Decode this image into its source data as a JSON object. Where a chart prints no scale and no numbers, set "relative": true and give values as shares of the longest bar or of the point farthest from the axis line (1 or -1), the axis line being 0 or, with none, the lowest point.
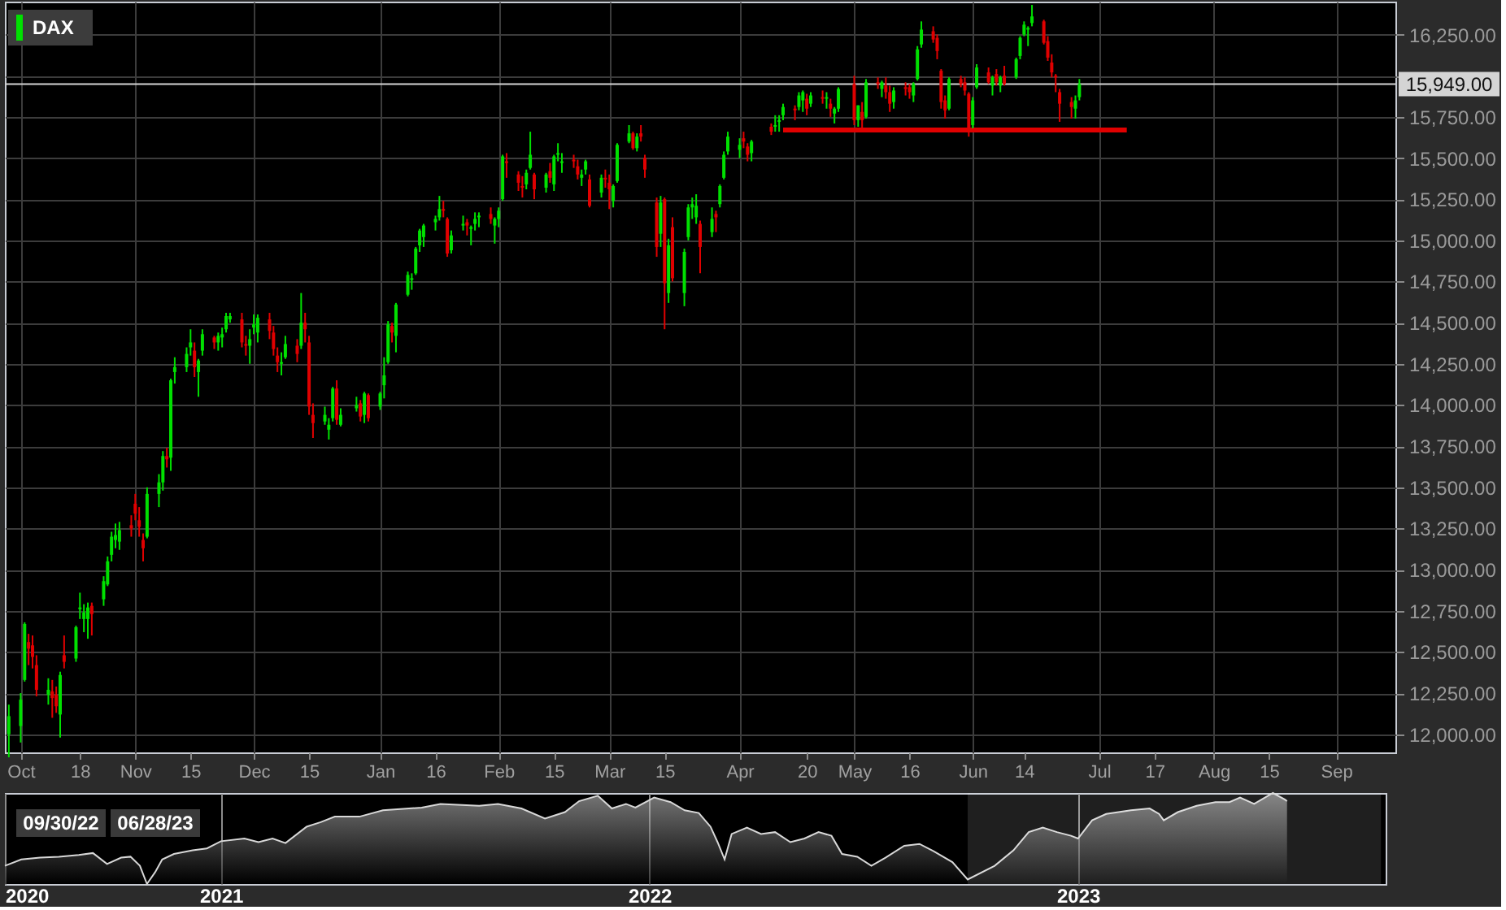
{
  "chart_data": [
    {
      "type": "candlestick",
      "x": [
        "2022-09-30",
        "2022-10-03",
        "2022-10-04",
        "2022-10-05",
        "2022-10-06",
        "2022-10-07",
        "2022-10-10",
        "2022-10-11",
        "2022-10-12",
        "2022-10-13",
        "2022-10-14",
        "2022-10-17",
        "2022-10-18",
        "2022-10-19",
        "2022-10-20",
        "2022-10-21",
        "2022-10-24",
        "2022-10-25",
        "2022-10-26",
        "2022-10-27",
        "2022-10-28",
        "2022-10-31",
        "2022-11-01",
        "2022-11-02",
        "2022-11-03",
        "2022-11-04",
        "2022-11-07",
        "2022-11-08",
        "2022-11-09",
        "2022-11-10",
        "2022-11-11",
        "2022-11-14",
        "2022-11-15",
        "2022-11-16",
        "2022-11-17",
        "2022-11-18",
        "2022-11-21",
        "2022-11-22",
        "2022-11-23",
        "2022-11-24",
        "2022-11-25",
        "2022-11-28",
        "2022-11-29",
        "2022-11-30",
        "2022-12-01",
        "2022-12-02",
        "2022-12-05",
        "2022-12-06",
        "2022-12-07",
        "2022-12-08",
        "2022-12-09",
        "2022-12-12",
        "2022-12-13",
        "2022-12-14",
        "2022-12-15",
        "2022-12-16",
        "2022-12-19",
        "2022-12-20",
        "2022-12-21",
        "2022-12-22",
        "2022-12-23",
        "2022-12-27",
        "2022-12-28",
        "2022-12-29",
        "2022-12-30",
        "2023-01-02",
        "2023-01-03",
        "2023-01-04",
        "2023-01-05",
        "2023-01-06",
        "2023-01-09",
        "2023-01-10",
        "2023-01-11",
        "2023-01-12",
        "2023-01-13",
        "2023-01-16",
        "2023-01-17",
        "2023-01-18",
        "2023-01-19",
        "2023-01-20",
        "2023-01-23",
        "2023-01-24",
        "2023-01-25",
        "2023-01-26",
        "2023-01-27",
        "2023-01-30",
        "2023-01-31",
        "2023-02-01",
        "2023-02-02",
        "2023-02-03",
        "2023-02-06",
        "2023-02-07",
        "2023-02-08",
        "2023-02-09",
        "2023-02-10",
        "2023-02-13",
        "2023-02-14",
        "2023-02-15",
        "2023-02-16",
        "2023-02-17",
        "2023-02-20",
        "2023-02-21",
        "2023-02-22",
        "2023-02-23",
        "2023-02-24",
        "2023-02-27",
        "2023-02-28",
        "2023-03-01",
        "2023-03-02",
        "2023-03-03",
        "2023-03-06",
        "2023-03-07",
        "2023-03-08",
        "2023-03-09",
        "2023-03-10",
        "2023-03-13",
        "2023-03-14",
        "2023-03-15",
        "2023-03-16",
        "2023-03-17",
        "2023-03-20",
        "2023-03-21",
        "2023-03-22",
        "2023-03-23",
        "2023-03-24",
        "2023-03-27",
        "2023-03-28",
        "2023-03-29",
        "2023-03-30",
        "2023-03-31",
        "2023-04-03",
        "2023-04-04",
        "2023-04-05",
        "2023-04-06",
        "2023-04-11",
        "2023-04-12",
        "2023-04-13",
        "2023-04-14",
        "2023-04-17",
        "2023-04-18",
        "2023-04-19",
        "2023-04-20",
        "2023-04-21",
        "2023-04-24",
        "2023-04-25",
        "2023-04-26",
        "2023-04-27",
        "2023-04-28",
        "2023-05-02",
        "2023-05-03",
        "2023-05-04",
        "2023-05-05",
        "2023-05-08",
        "2023-05-09",
        "2023-05-10",
        "2023-05-11",
        "2023-05-12",
        "2023-05-15",
        "2023-05-16",
        "2023-05-17",
        "2023-05-18",
        "2023-05-19",
        "2023-05-22",
        "2023-05-23",
        "2023-05-24",
        "2023-05-25",
        "2023-05-26",
        "2023-05-29",
        "2023-05-30",
        "2023-05-31",
        "2023-06-01",
        "2023-06-02",
        "2023-06-05",
        "2023-06-06",
        "2023-06-07",
        "2023-06-08",
        "2023-06-09",
        "2023-06-12",
        "2023-06-13",
        "2023-06-14",
        "2023-06-15",
        "2023-06-16",
        "2023-06-19",
        "2023-06-20",
        "2023-06-21",
        "2023-06-22",
        "2023-06-23",
        "2023-06-26",
        "2023-06-27",
        "2023-06-28"
      ],
      "series": [
        {
          "name": "DAX",
          "color": "#00e000",
          "colors": [
            "#00e000",
            "#00e000",
            "#00e000",
            "#e00000",
            "#e00000",
            "#e00000",
            "#00e000",
            "#e00000",
            "#e00000",
            "#00e000",
            "#e00000",
            "#00e000",
            "#00e000",
            "#00e000",
            "#00e000",
            "#e00000",
            "#00e000",
            "#00e000",
            "#00e000",
            "#00e000",
            "#00e000",
            "#e00000",
            "#e00000",
            "#e00000",
            "#e00000",
            "#00e000",
            "#00e000",
            "#00e000",
            "#e00000",
            "#00e000",
            "#00e000",
            "#00e000",
            "#00e000",
            "#e00000",
            "#00e000",
            "#00e000",
            "#e00000",
            "#00e000",
            "#00e000",
            "#00e000",
            "#00e000",
            "#e00000",
            "#e00000",
            "#00e000",
            "#00e000",
            "#00e000",
            "#e00000",
            "#e00000",
            "#e00000",
            "#00e000",
            "#00e000",
            "#e00000",
            "#00e000",
            "#e00000",
            "#e00000",
            "#e00000",
            "#00e000",
            "#00e000",
            "#00e000",
            "#e00000",
            "#00e000",
            "#00e000",
            "#e00000",
            "#00e000",
            "#e00000",
            "#00e000",
            "#00e000",
            "#00e000",
            "#e00000",
            "#00e000",
            "#00e000",
            "#00e000",
            "#00e000",
            "#00e000",
            "#00e000",
            "#00e000",
            "#00e000",
            "#e00000",
            "#e00000",
            "#00e000",
            "#00e000",
            "#e00000",
            "#00e000",
            "#00e000",
            "#00e000",
            "#e00000",
            "#00e000",
            "#00e000",
            "#00e000",
            "#e00000",
            "#e00000",
            "#e00000",
            "#00e000",
            "#00e000",
            "#e00000",
            "#00e000",
            "#e00000",
            "#00e000",
            "#00e000",
            "#00e000",
            "#e00000",
            "#e00000",
            "#00e000",
            "#00e000",
            "#e00000",
            "#00e000",
            "#e00000",
            "#e00000",
            "#00e000",
            "#00e000",
            "#00e000",
            "#e00000",
            "#00e000",
            "#e00000",
            "#e00000",
            "#e00000",
            "#00e000",
            "#e00000",
            "#00e000",
            "#e00000",
            "#00e000",
            "#00e000",
            "#00e000",
            "#00e000",
            "#e00000",
            "#00e000",
            "#e00000",
            "#00e000",
            "#00e000",
            "#00e000",
            "#00e000",
            "#e00000",
            "#e00000",
            "#00e000",
            "#e00000",
            "#00e000",
            "#00e000",
            "#00e000",
            "#e00000",
            "#00e000",
            "#00e000",
            "#e00000",
            "#00e000",
            "#e00000",
            "#00e000",
            "#e00000",
            "#00e000",
            "#00e000",
            "#e00000",
            "#00e000",
            "#e00000",
            "#00e000",
            "#e00000",
            "#00e000",
            "#e00000",
            "#e00000",
            "#00e000",
            "#e00000",
            "#e00000",
            "#00e000",
            "#00e000",
            "#00e000",
            "#e00000",
            "#e00000",
            "#e00000",
            "#e00000",
            "#00e000",
            "#e00000",
            "#e00000",
            "#e00000",
            "#00e000",
            "#00e000",
            "#e00000",
            "#00e000",
            "#e00000",
            "#00e000",
            "#e00000",
            "#00e000",
            "#00e000",
            "#00e000",
            "#00e000",
            "#00e000",
            "#e00000",
            "#e00000",
            "#e00000",
            "#e00000",
            "#e00000",
            "#e00000",
            "#00e000",
            "#00e000"
          ],
          "ohlc": [
            [
              12000,
              12180,
              11860,
              12110
            ],
            [
              12050,
              12250,
              11950,
              12210
            ],
            [
              12330,
              12680,
              12320,
              12670
            ],
            [
              12560,
              12610,
              12420,
              12520
            ],
            [
              12540,
              12600,
              12400,
              12470
            ],
            [
              12420,
              12480,
              12230,
              12270
            ],
            [
              12240,
              12340,
              12180,
              12270
            ],
            [
              12260,
              12330,
              12100,
              12220
            ],
            [
              12240,
              12290,
              12130,
              12170
            ],
            [
              12120,
              12380,
              11980,
              12360
            ],
            [
              12480,
              12600,
              12400,
              12440
            ],
            [
              12460,
              12660,
              12440,
              12650
            ],
            [
              12760,
              12860,
              12700,
              12770
            ],
            [
              12700,
              12790,
              12620,
              12740
            ],
            [
              12700,
              12800,
              12580,
              12770
            ],
            [
              12780,
              12800,
              12600,
              12730
            ],
            [
              12820,
              12960,
              12780,
              12930
            ],
            [
              12910,
              13080,
              12900,
              13050
            ],
            [
              13090,
              13230,
              13050,
              13200
            ],
            [
              13180,
              13280,
              13130,
              13210
            ],
            [
              13170,
              13290,
              13120,
              13240
            ],
            [
              13270,
              13330,
              13200,
              13250
            ],
            [
              13400,
              13460,
              13300,
              13340
            ],
            [
              13300,
              13380,
              13200,
              13260
            ],
            [
              13180,
              13220,
              13050,
              13130
            ],
            [
              13200,
              13500,
              13190,
              13460
            ],
            [
              13460,
              13580,
              13380,
              13530
            ],
            [
              13530,
              13720,
              13480,
              13690
            ],
            [
              13690,
              13740,
              13620,
              13670
            ],
            [
              13680,
              14160,
              13600,
              14150
            ],
            [
              14200,
              14290,
              14130,
              14230
            ],
            [
              14230,
              14350,
              14200,
              14310
            ],
            [
              14350,
              14460,
              14300,
              14380
            ],
            [
              14330,
              14380,
              14170,
              14230
            ],
            [
              14200,
              14280,
              14050,
              14270
            ],
            [
              14330,
              14460,
              14300,
              14430
            ],
            [
              14410,
              14420,
              14340,
              14380
            ],
            [
              14380,
              14440,
              14330,
              14420
            ],
            [
              14410,
              14470,
              14350,
              14430
            ],
            [
              14460,
              14560,
              14440,
              14540
            ],
            [
              14520,
              14560,
              14500,
              14540
            ],
            [
              14520,
              14560,
              14350,
              14380
            ],
            [
              14370,
              14420,
              14300,
              14360
            ],
            [
              14360,
              14460,
              14250,
              14400
            ],
            [
              14470,
              14550,
              14430,
              14490
            ],
            [
              14440,
              14550,
              14380,
              14530
            ],
            [
              14520,
              14560,
              14400,
              14450
            ],
            [
              14440,
              14480,
              14300,
              14340
            ],
            [
              14300,
              14350,
              14200,
              14260
            ],
            [
              14250,
              14320,
              14180,
              14260
            ],
            [
              14290,
              14420,
              14280,
              14370
            ],
            [
              14360,
              14400,
              14260,
              14310
            ],
            [
              14360,
              14680,
              14340,
              14500
            ],
            [
              14500,
              14560,
              14380,
              14460
            ],
            [
              14380,
              14420,
              13940,
              13990
            ],
            [
              13940,
              14010,
              13800,
              13890
            ],
            [
              13900,
              13990,
              13880,
              13940
            ],
            [
              13850,
              13920,
              13790,
              13880
            ],
            [
              13920,
              14110,
              13900,
              14100
            ],
            [
              14100,
              14150,
              13880,
              13910
            ],
            [
              13880,
              13980,
              13870,
              13940
            ],
            [
              13980,
              14050,
              13960,
              14000
            ],
            [
              14010,
              14030,
              13900,
              13930
            ],
            [
              13940,
              14080,
              13890,
              14070
            ],
            [
              14060,
              14070,
              13900,
              13920
            ],
            [
              13990,
              14080,
              13970,
              14070
            ],
            [
              14120,
              14290,
              14040,
              14180
            ],
            [
              14260,
              14510,
              14250,
              14490
            ],
            [
              14480,
              14500,
              14380,
              14440
            ],
            [
              14420,
              14620,
              14320,
              14610
            ],
            [
              14670,
              14810,
              14660,
              14790
            ],
            [
              14760,
              14800,
              14700,
              14770
            ],
            [
              14800,
              14960,
              14790,
              14950
            ],
            [
              14970,
              15070,
              14930,
              15060
            ],
            [
              15020,
              15100,
              14960,
              15090
            ],
            [
              15110,
              15150,
              15060,
              15130
            ],
            [
              15140,
              15270,
              15120,
              15190
            ],
            [
              15190,
              15240,
              15140,
              15180
            ],
            [
              15130,
              15140,
              14900,
              14920
            ],
            [
              14940,
              15060,
              14920,
              15030
            ],
            [
              15090,
              15150,
              15060,
              15100
            ],
            [
              15110,
              15130,
              15030,
              15090
            ],
            [
              15070,
              15090,
              14970,
              15080
            ],
            [
              15100,
              15170,
              15060,
              15130
            ],
            [
              15140,
              15170,
              15080,
              15150
            ],
            [
              15160,
              15200,
              15100,
              15130
            ],
            [
              15090,
              15140,
              14980,
              15130
            ],
            [
              15130,
              15200,
              15080,
              15180
            ],
            [
              15250,
              15520,
              15240,
              15510
            ],
            [
              15480,
              15530,
              15380,
              15470
            ],
            [
              15400,
              15420,
              15300,
              15350
            ],
            [
              15330,
              15390,
              15260,
              15320
            ],
            [
              15340,
              15430,
              15310,
              15410
            ],
            [
              15440,
              15660,
              15430,
              15520
            ],
            [
              15400,
              15410,
              15250,
              15310
            ],
            [
              15320,
              15410,
              15290,
              15400
            ],
            [
              15420,
              15470,
              15350,
              15380
            ],
            [
              15340,
              15520,
              15300,
              15510
            ],
            [
              15520,
              15590,
              15480,
              15530
            ],
            [
              15470,
              15530,
              15410,
              15480
            ],
            [
              15490,
              15520,
              15440,
              15480
            ],
            [
              15450,
              15490,
              15370,
              15400
            ],
            [
              15380,
              15430,
              15330,
              15400
            ],
            [
              15430,
              15490,
              15400,
              15480
            ],
            [
              15370,
              15400,
              15200,
              15210
            ],
            [
              15290,
              15400,
              15260,
              15380
            ],
            [
              15380,
              15430,
              15320,
              15370
            ],
            [
              15350,
              15400,
              15190,
              15310
            ],
            [
              15240,
              15340,
              15200,
              15330
            ],
            [
              15360,
              15590,
              15350,
              15580
            ],
            [
              15600,
              15700,
              15590,
              15650
            ],
            [
              15650,
              15660,
              15550,
              15560
            ],
            [
              15560,
              15650,
              15540,
              15630
            ],
            [
              15650,
              15700,
              15600,
              15630
            ],
            [
              15500,
              15520,
              15380,
              15430
            ],
            [
              15230,
              15260,
              14900,
              14960
            ],
            [
              15040,
              15270,
              14960,
              15230
            ],
            [
              15250,
              15260,
              14460,
              14740
            ],
            [
              14680,
              15010,
              14620,
              14970
            ],
            [
              15080,
              15140,
              14750,
              14770
            ],
            [
              14680,
              14950,
              14600,
              14930
            ],
            [
              15020,
              15220,
              15000,
              15200
            ],
            [
              15200,
              15260,
              15130,
              15220
            ],
            [
              15140,
              15280,
              15100,
              15210
            ],
            [
              15100,
              15120,
              14800,
              14960
            ],
            [
              15050,
              15200,
              15020,
              15130
            ],
            [
              15160,
              15180,
              15050,
              15140
            ],
            [
              15220,
              15340,
              15200,
              15330
            ],
            [
              15380,
              15540,
              15370,
              15520
            ],
            [
              15540,
              15660,
              15520,
              15630
            ],
            [
              15550,
              15620,
              15500,
              15580
            ],
            [
              15620,
              15660,
              15560,
              15600
            ],
            [
              15570,
              15590,
              15480,
              15520
            ],
            [
              15530,
              15610,
              15480,
              15600
            ],
            [
              15690,
              15710,
              15640,
              15660
            ],
            [
              15690,
              15760,
              15660,
              15700
            ],
            [
              15720,
              15760,
              15660,
              15730
            ],
            [
              15760,
              15830,
              15730,
              15810
            ],
            [
              15800,
              15820,
              15730,
              15790
            ],
            [
              15810,
              15900,
              15790,
              15880
            ],
            [
              15850,
              15910,
              15780,
              15900
            ],
            [
              15860,
              15890,
              15760,
              15800
            ],
            [
              15830,
              15900,
              15810,
              15880
            ],
            [
              15870,
              15910,
              15830,
              15860
            ],
            [
              15860,
              15900,
              15800,
              15870
            ],
            [
              15830,
              15860,
              15750,
              15800
            ],
            [
              15770,
              15810,
              15710,
              15800
            ],
            [
              15800,
              15930,
              15780,
              15920
            ],
            [
              15950,
              16000,
              15700,
              15730
            ],
            [
              15730,
              15820,
              15690,
              15820
            ],
            [
              15780,
              15840,
              15660,
              15730
            ],
            [
              15750,
              15980,
              15740,
              15960
            ],
            [
              15960,
              15990,
              15920,
              15950
            ],
            [
              15920,
              15970,
              15870,
              15960
            ],
            [
              15940,
              15990,
              15860,
              15900
            ],
            [
              15900,
              15940,
              15780,
              15830
            ],
            [
              15840,
              15930,
              15800,
              15910
            ],
            [
              15930,
              15960,
              15880,
              15920
            ],
            [
              15930,
              15950,
              15860,
              15900
            ],
            [
              15880,
              15960,
              15840,
              15950
            ],
            [
              15980,
              16180,
              15970,
              16160
            ],
            [
              16190,
              16330,
              16170,
              16280
            ],
            [
              16270,
              16300,
              16200,
              16220
            ],
            [
              16230,
              16250,
              16100,
              16150
            ],
            [
              16030,
              16040,
              15800,
              15840
            ],
            [
              15850,
              15880,
              15740,
              15790
            ],
            [
              15800,
              15990,
              15790,
              15980
            ],
            [
              15980,
              16000,
              15930,
              15950
            ],
            [
              15960,
              15990,
              15880,
              15910
            ],
            [
              15890,
              15900,
              15630,
              15660
            ],
            [
              15700,
              15870,
              15680,
              15850
            ],
            [
              15930,
              16070,
              15920,
              16050
            ],
            [
              16020,
              16050,
              15950,
              15960
            ],
            [
              15940,
              16000,
              15880,
              15990
            ],
            [
              16010,
              16040,
              15940,
              15960
            ],
            [
              15940,
              16000,
              15900,
              15990
            ],
            [
              16000,
              16060,
              15940,
              15950
            ],
            [
              15990,
              16110,
              15980,
              16100
            ],
            [
              16120,
              16240,
              16100,
              16230
            ],
            [
              16250,
              16330,
              16240,
              16310
            ],
            [
              16280,
              16300,
              16180,
              16290
            ],
            [
              16320,
              16430,
              16300,
              16360
            ],
            [
              16330,
              16340,
              16190,
              16200
            ],
            [
              16210,
              16240,
              16090,
              16110
            ],
            [
              16080,
              16130,
              15990,
              16020
            ],
            [
              16000,
              16010,
              15900,
              15990
            ],
            [
              15900,
              15920,
              15720,
              15830
            ],
            [
              15840,
              15870,
              15740,
              15810
            ],
            [
              15800,
              15880,
              15740,
              15850
            ],
            [
              15870,
              15980,
              15850,
              15949
            ]
          ]
        },
        {
          "type": "line",
          "x": [
            "2023-04-14",
            "2023-07-10"
          ],
          "values": [
            15670,
            15670
          ],
          "color": "#e00000"
        }
      ],
      "xlim": [
        "2022-09-29",
        "2023-09-16"
      ],
      "xticks": [
        {
          "value": "2022-10-03",
          "label": "Oct"
        },
        {
          "value": "2022-10-18",
          "label": "18"
        },
        {
          "value": "2022-11-01",
          "label": "Nov"
        },
        {
          "value": "2022-11-15",
          "label": "15"
        },
        {
          "value": "2022-12-01",
          "label": "Dec"
        },
        {
          "value": "2022-12-15",
          "label": "15"
        },
        {
          "value": "2023-01-02",
          "label": "Jan"
        },
        {
          "value": "2023-01-16",
          "label": "16"
        },
        {
          "value": "2023-02-01",
          "label": "Feb"
        },
        {
          "value": "2023-02-15",
          "label": "15"
        },
        {
          "value": "2023-03-01",
          "label": "Mar"
        },
        {
          "value": "2023-03-15",
          "label": "15"
        },
        {
          "value": "2023-04-03",
          "label": "Apr"
        },
        {
          "value": "2023-04-20",
          "label": "20"
        },
        {
          "value": "2023-05-02",
          "label": "May"
        },
        {
          "value": "2023-05-16",
          "label": "16"
        },
        {
          "value": "2023-06-01",
          "label": "Jun"
        },
        {
          "value": "2023-06-14",
          "label": "14"
        },
        {
          "value": "2023-07-03",
          "label": "Jul"
        },
        {
          "value": "2023-07-17",
          "label": "17"
        },
        {
          "value": "2023-08-01",
          "label": "Aug"
        },
        {
          "value": "2023-08-15",
          "label": "15"
        },
        {
          "value": "2023-09-01",
          "label": "Sep"
        }
      ],
      "ylim": [
        11890,
        16450
      ],
      "yticks": [
        {
          "value": 12000,
          "label": "12,000.00"
        },
        {
          "value": 12250,
          "label": "12,250.00"
        },
        {
          "value": 12500,
          "label": "12,500.00"
        },
        {
          "value": 12750,
          "label": "12,750.00"
        },
        {
          "value": 13000,
          "label": "13,000.00"
        },
        {
          "value": 13250,
          "label": "13,250.00"
        },
        {
          "value": 13500,
          "label": "13,500.00"
        },
        {
          "value": 13750,
          "label": "13,750.00"
        },
        {
          "value": 14000,
          "label": "14,000.00"
        },
        {
          "value": 14250,
          "label": "14,250.00"
        },
        {
          "value": 14500,
          "label": "14,500.00"
        },
        {
          "value": 14750,
          "label": "14,750.00"
        },
        {
          "value": 15000,
          "label": "15,000.00"
        },
        {
          "value": 15250,
          "label": "15,250.00"
        },
        {
          "value": 15500,
          "label": "15,500.00"
        },
        {
          "value": 15750,
          "label": "15,750.00"
        },
        {
          "value": 16000,
          "label": null
        },
        {
          "value": 16250,
          "label": "16,250.00"
        }
      ],
      "ref_lines": [
        {
          "axis": "y",
          "value": 15949,
          "label": "15,949.00",
          "color": "#d4d4d4"
        }
      ],
      "grid": true,
      "legend": "top left"
    },
    {
      "type": "area",
      "x": [
        "2020-07-01",
        "2020-07-15",
        "2020-07-31",
        "2020-08-16",
        "2020-09-02",
        "2020-09-14",
        "2020-09-26",
        "2020-10-08",
        "2020-10-16",
        "2020-10-24",
        "2020-10-30",
        "2020-11-06",
        "2020-11-12",
        "2020-11-22",
        "2020-12-08",
        "2020-12-20",
        "2021-01-01",
        "2021-01-21",
        "2021-02-02",
        "2021-02-14",
        "2021-02-25",
        "2021-03-15",
        "2021-03-27",
        "2021-04-08",
        "2021-04-29",
        "2021-05-19",
        "2021-06-21",
        "2021-07-07",
        "2021-08-09",
        "2021-08-25",
        "2021-09-14",
        "2021-10-04",
        "2021-10-21",
        "2021-11-02",
        "2021-11-18",
        "2021-11-30",
        "2021-12-12",
        "2021-12-20",
        "2022-01-05",
        "2022-01-19",
        "2022-01-31",
        "2022-02-12",
        "2022-02-22",
        "2022-02-28",
        "2022-03-06",
        "2022-03-12",
        "2022-03-25",
        "2022-04-06",
        "2022-04-18",
        "2022-05-01",
        "2022-05-13",
        "2022-05-25",
        "2022-06-05",
        "2022-06-14",
        "2022-06-27",
        "2022-07-09",
        "2022-07-21",
        "2022-08-06",
        "2022-08-19",
        "2022-08-31",
        "2022-09-16",
        "2022-09-29",
        "2022-10-22",
        "2022-11-07",
        "2022-11-20",
        "2022-12-02",
        "2022-12-14",
        "2022-12-26",
        "2023-01-01",
        "2023-01-13",
        "2023-01-25",
        "2023-02-15",
        "2023-03-03",
        "2023-03-11",
        "2023-03-15",
        "2023-03-27",
        "2023-04-12",
        "2023-04-28",
        "2023-05-10",
        "2023-05-19",
        "2023-05-31",
        "2023-06-16",
        "2023-06-26",
        "2023-06-28"
      ],
      "series": [
        {
          "color": "#d8d8d8",
          "values": [
            0.2,
            0.27,
            0.29,
            0.3,
            0.32,
            0.34,
            0.22,
            0.29,
            0.3,
            0.2,
            0.0,
            0.13,
            0.27,
            0.33,
            0.37,
            0.39,
            0.47,
            0.5,
            0.46,
            0.5,
            0.45,
            0.63,
            0.68,
            0.74,
            0.74,
            0.81,
            0.84,
            0.88,
            0.86,
            0.88,
            0.83,
            0.72,
            0.79,
            0.91,
            0.97,
            0.83,
            0.88,
            0.84,
            0.95,
            0.9,
            0.81,
            0.78,
            0.63,
            0.46,
            0.27,
            0.55,
            0.62,
            0.55,
            0.57,
            0.46,
            0.5,
            0.57,
            0.53,
            0.33,
            0.3,
            0.2,
            0.29,
            0.42,
            0.44,
            0.36,
            0.24,
            0.05,
            0.2,
            0.37,
            0.57,
            0.62,
            0.57,
            0.53,
            0.5,
            0.7,
            0.77,
            0.81,
            0.83,
            0.77,
            0.7,
            0.79,
            0.86,
            0.9,
            0.9,
            0.95,
            0.88,
            1.0,
            0.93,
            0.91
          ]
        }
      ],
      "relative": true,
      "xlim": [
        "2020-07-01",
        "2023-09-20"
      ],
      "xticks": [
        {
          "value": "2020-07-01",
          "label": "2020"
        },
        {
          "value": "2021-01-01",
          "label": "2021"
        },
        {
          "value": "2022-01-01",
          "label": "2022"
        },
        {
          "value": "2023-01-01",
          "label": "2023"
        }
      ],
      "grid": "x",
      "bands": [
        {
          "axis": "x",
          "from": "2022-09-29",
          "to": "2023-09-16",
          "color": "#ffffff"
        }
      ],
      "annotations": [
        "09/30/22",
        "06/28/23"
      ]
    }
  ]
}
